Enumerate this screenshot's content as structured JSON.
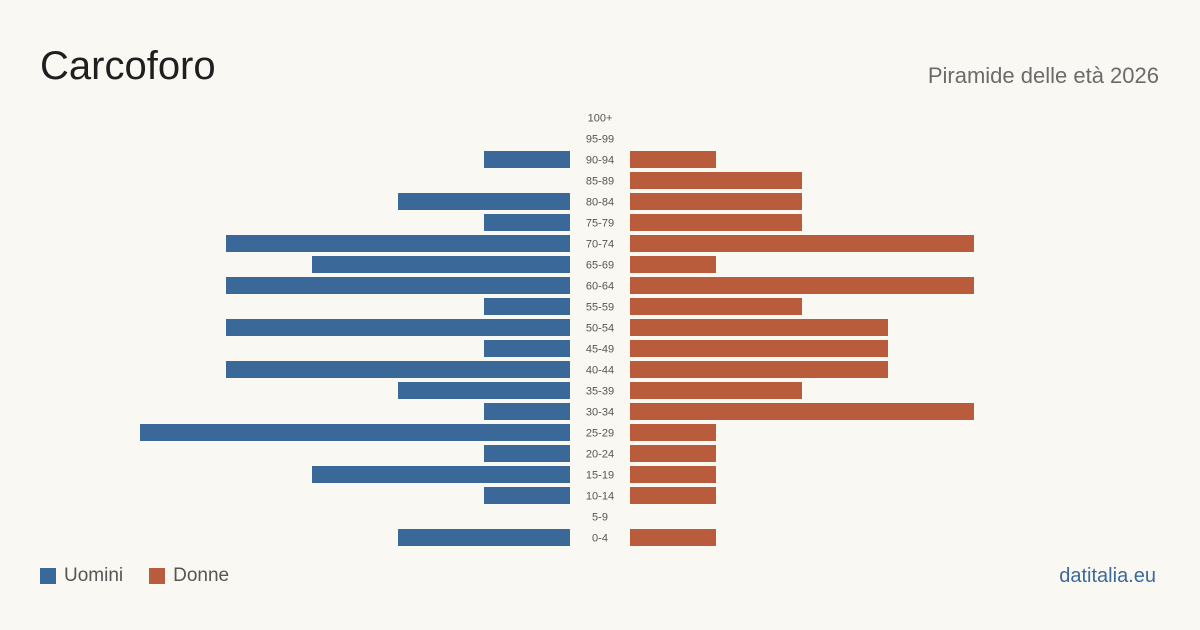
{
  "header": {
    "title": "Carcoforo",
    "subtitle": "Piramide delle età 2026"
  },
  "legend": {
    "men_label": "Uomini",
    "women_label": "Donne"
  },
  "brand": "datitalia.eu",
  "colors": {
    "men": "#3a6898",
    "women": "#b85c3c",
    "background": "#faf8f3"
  },
  "chart_data": {
    "type": "bar",
    "orientation": "horizontal-pyramid",
    "categories": [
      "100+",
      "95-99",
      "90-94",
      "85-89",
      "80-84",
      "75-79",
      "70-74",
      "65-69",
      "60-64",
      "55-59",
      "50-54",
      "45-49",
      "40-44",
      "35-39",
      "30-34",
      "25-29",
      "20-24",
      "15-19",
      "10-14",
      "5-9",
      "0-4"
    ],
    "series": [
      {
        "name": "Uomini",
        "values": [
          0,
          0,
          1,
          0,
          2,
          1,
          4,
          3,
          4,
          1,
          4,
          1,
          4,
          2,
          1,
          5,
          1,
          3,
          1,
          0,
          2
        ]
      },
      {
        "name": "Donne",
        "values": [
          0,
          0,
          1,
          2,
          2,
          2,
          4,
          1,
          4,
          2,
          3,
          3,
          3,
          2,
          4,
          1,
          1,
          1,
          1,
          0,
          1
        ]
      }
    ],
    "xlim": [
      0,
      5
    ],
    "grid": false,
    "legend_position": "bottom-left"
  }
}
